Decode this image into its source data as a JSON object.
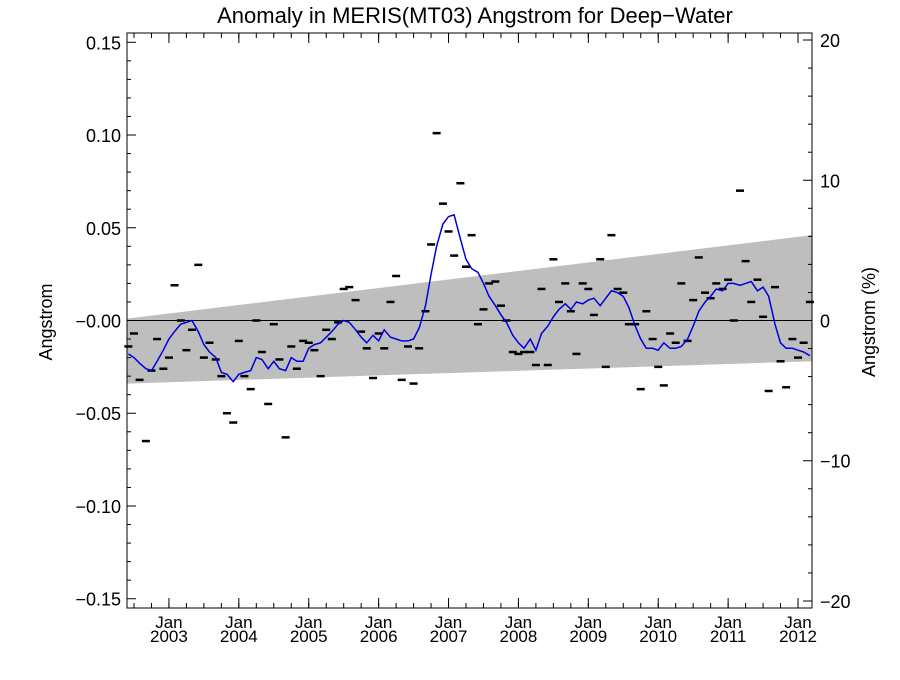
{
  "chart_data": {
    "type": "line",
    "title": "Anomaly in MERIS(MT03) Angstrom for Deep−Water",
    "ylabel": "Angstrom",
    "y2label": "Angstrom (%)",
    "xlim": [
      2002.4,
      2012.2
    ],
    "ylim": [
      -0.155,
      0.155
    ],
    "y2lim": [
      -20.5,
      20.5
    ],
    "y_ticks": [
      -0.15,
      -0.1,
      -0.05,
      0.0,
      0.05,
      0.1,
      0.15
    ],
    "y_tick_labels": [
      "−0.15",
      "−0.10",
      "−0.05",
      "−0.00",
      "0.05",
      "0.10",
      "0.15"
    ],
    "y2_ticks": [
      -20,
      -10,
      0,
      10,
      20
    ],
    "y2_tick_labels": [
      "−20",
      "−10",
      "0",
      "10",
      "20"
    ],
    "x_ticks": [
      2003,
      2004,
      2005,
      2006,
      2007,
      2008,
      2009,
      2010,
      2011,
      2012
    ],
    "x_tick_month": [
      "Jan",
      "Jan",
      "Jan",
      "Jan",
      "Jan",
      "Jan",
      "Jan",
      "Jan",
      "Jan",
      "Jan"
    ],
    "x_tick_year": [
      "2003",
      "2004",
      "2005",
      "2006",
      "2007",
      "2008",
      "2009",
      "2010",
      "2011",
      "2012"
    ],
    "grid": false,
    "colors": {
      "line": "#0000dd",
      "band": "#bebebe",
      "points": "#000000",
      "zero_line": "#000000"
    },
    "band": {
      "x": [
        2002.4,
        2012.2
      ],
      "upper": [
        0.001,
        0.046
      ],
      "lower": [
        -0.034,
        -0.022
      ]
    },
    "series": [
      {
        "kind": "monthly-points",
        "x": [
          2002.42,
          2002.5,
          2002.58,
          2002.67,
          2002.75,
          2002.83,
          2002.92,
          2003.0,
          2003.08,
          2003.17,
          2003.25,
          2003.33,
          2003.42,
          2003.5,
          2003.58,
          2003.67,
          2003.75,
          2003.83,
          2003.92,
          2004.0,
          2004.08,
          2004.17,
          2004.25,
          2004.33,
          2004.42,
          2004.5,
          2004.58,
          2004.67,
          2004.75,
          2004.83,
          2004.92,
          2005.0,
          2005.08,
          2005.17,
          2005.25,
          2005.33,
          2005.42,
          2005.5,
          2005.58,
          2005.67,
          2005.75,
          2005.83,
          2005.92,
          2006.0,
          2006.08,
          2006.17,
          2006.25,
          2006.33,
          2006.42,
          2006.5,
          2006.58,
          2006.67,
          2006.75,
          2006.83,
          2006.92,
          2007.0,
          2007.08,
          2007.17,
          2007.25,
          2007.33,
          2007.42,
          2007.5,
          2007.58,
          2007.67,
          2007.75,
          2007.83,
          2007.92,
          2008.0,
          2008.08,
          2008.17,
          2008.25,
          2008.33,
          2008.42,
          2008.5,
          2008.58,
          2008.67,
          2008.75,
          2008.83,
          2008.92,
          2009.0,
          2009.08,
          2009.17,
          2009.25,
          2009.33,
          2009.42,
          2009.5,
          2009.58,
          2009.67,
          2009.75,
          2009.83,
          2009.92,
          2010.0,
          2010.08,
          2010.17,
          2010.25,
          2010.33,
          2010.42,
          2010.5,
          2010.58,
          2010.67,
          2010.75,
          2010.83,
          2010.92,
          2011.0,
          2011.08,
          2011.17,
          2011.25,
          2011.33,
          2011.42,
          2011.5,
          2011.58,
          2011.67,
          2011.75,
          2011.83,
          2011.92,
          2012.0,
          2012.08,
          2012.17
        ],
        "y": [
          -0.014,
          -0.007,
          -0.032,
          -0.065,
          -0.027,
          -0.01,
          -0.026,
          -0.02,
          0.019,
          0.0,
          -0.016,
          -0.005,
          0.03,
          -0.02,
          -0.012,
          -0.021,
          -0.03,
          -0.05,
          -0.055,
          -0.011,
          -0.03,
          -0.037,
          0.0,
          -0.017,
          -0.045,
          -0.002,
          -0.021,
          -0.063,
          -0.014,
          -0.026,
          -0.011,
          -0.012,
          -0.016,
          -0.03,
          -0.005,
          -0.01,
          -0.001,
          0.017,
          0.018,
          0.011,
          -0.006,
          -0.015,
          -0.031,
          -0.007,
          -0.015,
          0.01,
          0.024,
          -0.032,
          -0.014,
          -0.034,
          -0.015,
          0.005,
          0.041,
          0.101,
          0.063,
          0.048,
          0.035,
          0.074,
          0.029,
          0.046,
          -0.002,
          0.006,
          0.02,
          0.021,
          0.008,
          0.0,
          -0.017,
          -0.018,
          -0.017,
          -0.017,
          -0.024,
          0.017,
          -0.024,
          0.033,
          0.01,
          0.02,
          0.005,
          -0.018,
          0.02,
          0.017,
          0.003,
          0.033,
          -0.025,
          0.046,
          0.017,
          0.015,
          -0.002,
          -0.002,
          -0.037,
          0.005,
          -0.01,
          -0.025,
          -0.035,
          -0.007,
          -0.012,
          0.02,
          -0.011,
          0.011,
          0.034,
          0.015,
          0.012,
          0.02,
          0.017,
          0.022,
          0.0,
          0.07,
          0.032,
          0.01,
          0.022,
          0.002,
          -0.038,
          0.018,
          -0.022,
          -0.036,
          -0.01,
          -0.02,
          -0.012,
          0.01
        ]
      },
      {
        "kind": "smoothed-line",
        "x": [
          2002.42,
          2002.5,
          2002.58,
          2002.67,
          2002.75,
          2002.83,
          2002.92,
          2003.0,
          2003.08,
          2003.17,
          2003.25,
          2003.33,
          2003.42,
          2003.5,
          2003.58,
          2003.67,
          2003.75,
          2003.83,
          2003.92,
          2004.0,
          2004.08,
          2004.17,
          2004.25,
          2004.33,
          2004.42,
          2004.5,
          2004.58,
          2004.67,
          2004.75,
          2004.83,
          2004.92,
          2005.0,
          2005.08,
          2005.17,
          2005.25,
          2005.33,
          2005.42,
          2005.5,
          2005.58,
          2005.67,
          2005.75,
          2005.83,
          2005.92,
          2006.0,
          2006.08,
          2006.17,
          2006.25,
          2006.33,
          2006.42,
          2006.5,
          2006.58,
          2006.67,
          2006.75,
          2006.83,
          2006.92,
          2007.0,
          2007.08,
          2007.17,
          2007.25,
          2007.33,
          2007.42,
          2007.5,
          2007.58,
          2007.67,
          2007.75,
          2007.83,
          2007.92,
          2008.0,
          2008.08,
          2008.17,
          2008.25,
          2008.33,
          2008.42,
          2008.5,
          2008.58,
          2008.67,
          2008.75,
          2008.83,
          2008.92,
          2009.0,
          2009.08,
          2009.17,
          2009.25,
          2009.33,
          2009.42,
          2009.5,
          2009.58,
          2009.67,
          2009.75,
          2009.83,
          2009.92,
          2010.0,
          2010.08,
          2010.17,
          2010.25,
          2010.33,
          2010.42,
          2010.5,
          2010.58,
          2010.67,
          2010.75,
          2010.83,
          2010.92,
          2011.0,
          2011.08,
          2011.17,
          2011.25,
          2011.33,
          2011.42,
          2011.5,
          2011.58,
          2011.67,
          2011.75,
          2011.83,
          2011.92,
          2012.0,
          2012.08,
          2012.17
        ],
        "y": [
          -0.018,
          -0.02,
          -0.023,
          -0.026,
          -0.027,
          -0.022,
          -0.016,
          -0.01,
          -0.006,
          -0.002,
          -0.001,
          0.0,
          -0.006,
          -0.013,
          -0.017,
          -0.02,
          -0.028,
          -0.029,
          -0.033,
          -0.029,
          -0.028,
          -0.027,
          -0.02,
          -0.021,
          -0.026,
          -0.022,
          -0.026,
          -0.027,
          -0.02,
          -0.022,
          -0.022,
          -0.015,
          -0.013,
          -0.012,
          -0.009,
          -0.006,
          -0.002,
          0.0,
          -0.001,
          -0.005,
          -0.009,
          -0.012,
          -0.008,
          -0.011,
          -0.005,
          -0.009,
          -0.01,
          -0.011,
          -0.011,
          -0.01,
          -0.004,
          0.008,
          0.025,
          0.04,
          0.052,
          0.056,
          0.057,
          0.044,
          0.033,
          0.028,
          0.026,
          0.02,
          0.013,
          0.008,
          0.003,
          -0.001,
          -0.008,
          -0.012,
          -0.015,
          -0.01,
          -0.016,
          -0.007,
          -0.003,
          0.002,
          0.006,
          0.009,
          0.006,
          0.01,
          0.009,
          0.011,
          0.012,
          0.008,
          0.012,
          0.016,
          0.015,
          0.013,
          0.007,
          -0.003,
          -0.01,
          -0.015,
          -0.015,
          -0.016,
          -0.012,
          -0.015,
          -0.015,
          -0.014,
          -0.01,
          -0.003,
          0.005,
          0.01,
          0.013,
          0.017,
          0.016,
          0.02,
          0.02,
          0.019,
          0.02,
          0.021,
          0.016,
          0.018,
          0.013,
          -0.002,
          -0.012,
          -0.015,
          -0.015,
          -0.016,
          -0.017,
          -0.019
        ]
      }
    ]
  }
}
